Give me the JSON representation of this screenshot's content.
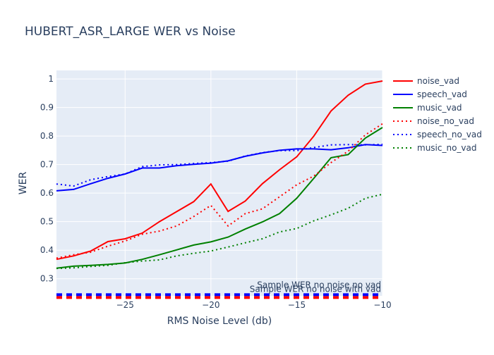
{
  "chart_data": {
    "type": "line",
    "title": "HUBERT_ASR_LARGE WER vs Noise",
    "xlabel": "RMS Noise Level (db)",
    "ylabel": "WER",
    "xlim": [
      -29,
      -10
    ],
    "ylim": [
      0.24,
      1.03
    ],
    "xticks": [
      -25,
      -20,
      -15,
      -10
    ],
    "xtick_labels": [
      "−25",
      "−20",
      "−15",
      "−10"
    ],
    "yticks": [
      0.3,
      0.4,
      0.5,
      0.6,
      0.7,
      0.8,
      0.9,
      1.0
    ],
    "ytick_labels": [
      "0.3",
      "0.4",
      "0.5",
      "0.6",
      "0.7",
      "0.8",
      "0.9",
      "1"
    ],
    "grid": true,
    "legend_position": "right",
    "x": [
      -29,
      -28,
      -27,
      -26,
      -25,
      -24,
      -23,
      -22,
      -21,
      -20,
      -19,
      -18,
      -17,
      -16,
      -15,
      -14,
      -13,
      -12,
      -11,
      -10
    ],
    "series": [
      {
        "name": "noise_vad",
        "color": "#ff0000",
        "dash": "solid",
        "values": [
          0.368,
          0.38,
          0.397,
          0.43,
          0.44,
          0.46,
          0.5,
          0.535,
          0.57,
          0.632,
          0.536,
          0.572,
          0.633,
          0.682,
          0.727,
          0.8,
          0.888,
          0.943,
          0.982,
          0.993
        ]
      },
      {
        "name": "speech_vad",
        "color": "#0000ff",
        "dash": "solid",
        "values": [
          0.608,
          0.613,
          0.633,
          0.652,
          0.667,
          0.688,
          0.688,
          0.696,
          0.701,
          0.705,
          0.713,
          0.729,
          0.741,
          0.75,
          0.755,
          0.755,
          0.752,
          0.759,
          0.77,
          0.767
        ]
      },
      {
        "name": "music_vad",
        "color": "#008000",
        "dash": "solid",
        "values": [
          0.337,
          0.344,
          0.347,
          0.35,
          0.355,
          0.368,
          0.384,
          0.401,
          0.418,
          0.429,
          0.446,
          0.474,
          0.499,
          0.528,
          0.582,
          0.652,
          0.724,
          0.735,
          0.793,
          0.83
        ]
      },
      {
        "name": "noise_no_vad",
        "color": "#ff0000",
        "dash": "dot",
        "values": [
          0.372,
          0.384,
          0.393,
          0.414,
          0.432,
          0.456,
          0.467,
          0.485,
          0.518,
          0.557,
          0.485,
          0.528,
          0.545,
          0.587,
          0.629,
          0.66,
          0.707,
          0.747,
          0.804,
          0.843
        ]
      },
      {
        "name": "speech_no_vad",
        "color": "#0000ff",
        "dash": "dot",
        "values": [
          0.632,
          0.625,
          0.647,
          0.658,
          0.667,
          0.693,
          0.699,
          0.7,
          0.704,
          0.707,
          0.712,
          0.73,
          0.742,
          0.749,
          0.749,
          0.76,
          0.769,
          0.77,
          0.769,
          0.771
        ]
      },
      {
        "name": "music_no_vad",
        "color": "#008000",
        "dash": "dot",
        "values": [
          0.336,
          0.338,
          0.343,
          0.347,
          0.356,
          0.362,
          0.366,
          0.38,
          0.389,
          0.397,
          0.411,
          0.426,
          0.44,
          0.464,
          0.476,
          0.503,
          0.524,
          0.547,
          0.582,
          0.596
        ]
      }
    ],
    "reference_lines": [
      {
        "label": "Sample WER no noise no vad",
        "value": 0.239,
        "color": "#0000ff",
        "dash": "dash"
      },
      {
        "label": "Sample WER no noise with vad",
        "value": 0.239,
        "color": "#ff0000",
        "dash": "dash"
      }
    ]
  }
}
